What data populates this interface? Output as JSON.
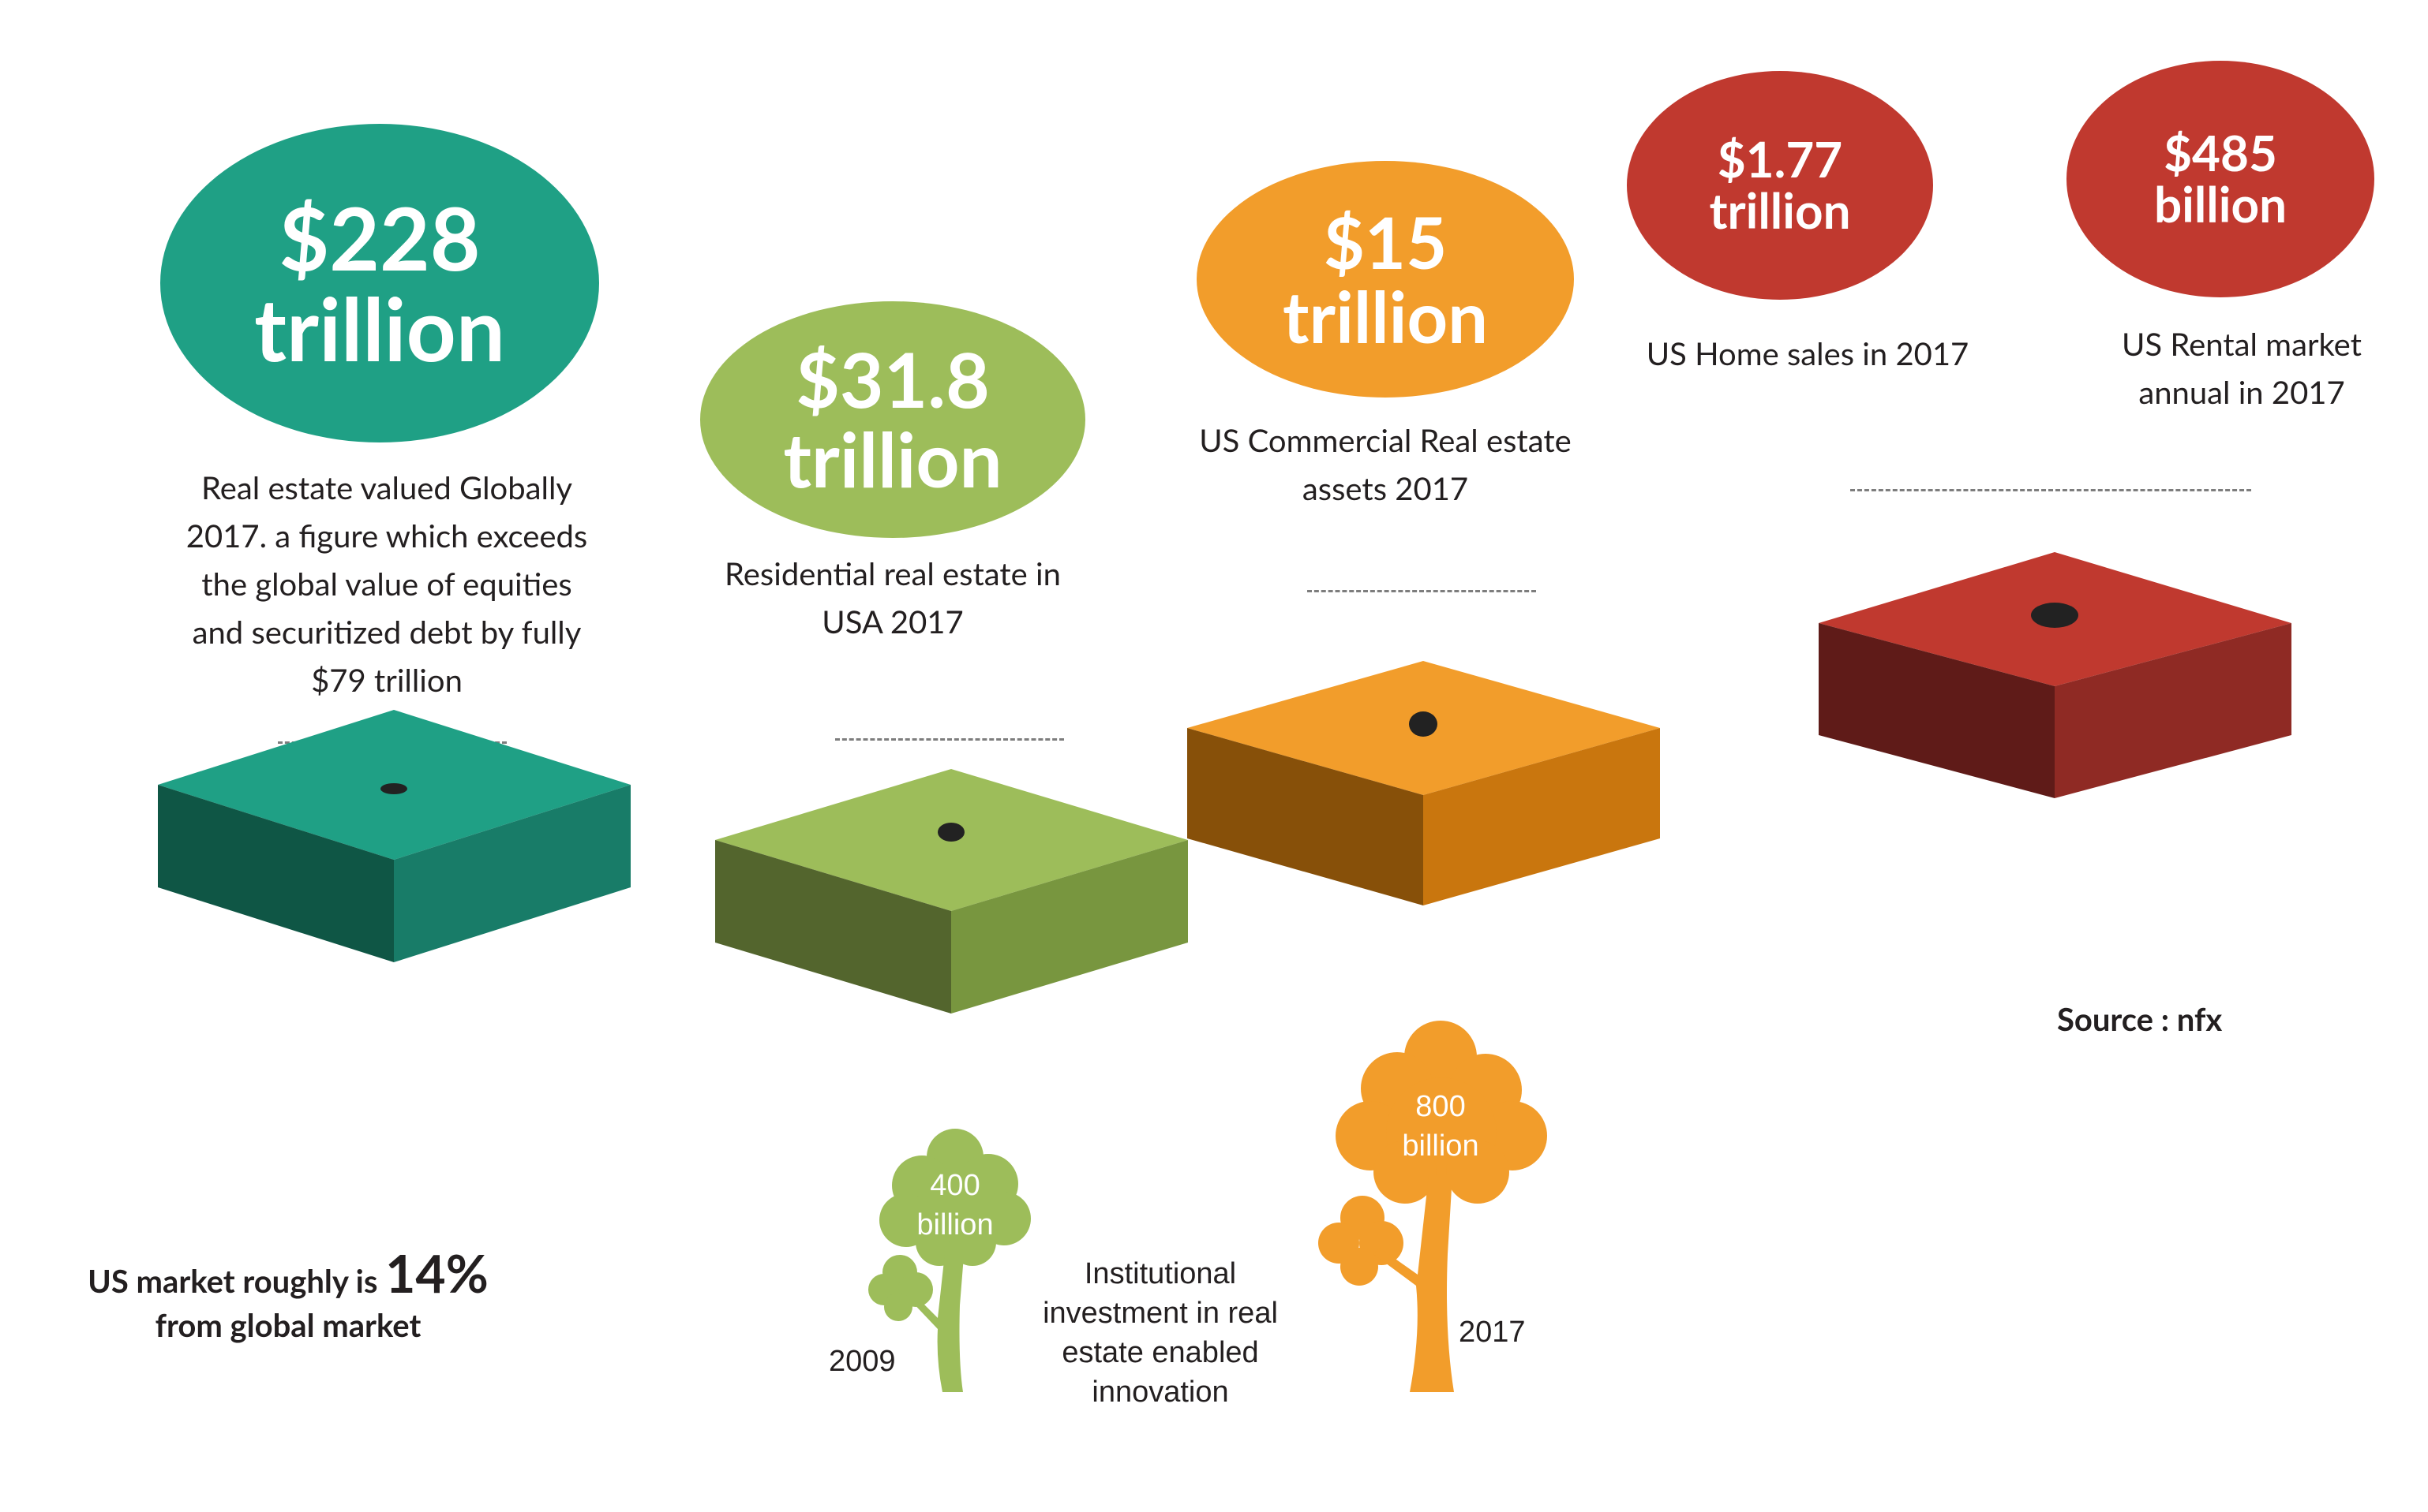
{
  "stats": [
    {
      "value_line1": "$228",
      "value_line2": "trillion",
      "caption": [
        "Real estate valued Globally",
        "2017. a figure which exceeds",
        "the global value of equities",
        "and securitized debt by fully",
        "$79 trillion"
      ],
      "color": "#1fa085"
    },
    {
      "value_line1": "$31.8",
      "value_line2": "trillion",
      "caption": [
        "Residential real estate in",
        "USA 2017"
      ],
      "color": "#9dbd5a"
    },
    {
      "value_line1": "$15",
      "value_line2": "trillion",
      "caption": [
        "US Commercial Real estate",
        "assets 2017"
      ],
      "color": "#f29d2b"
    },
    {
      "value_line1": "$1.77",
      "value_line2": "trillion",
      "caption": [
        "US Home sales in 2017"
      ],
      "color": "#c0392f"
    },
    {
      "value_line1": "$485",
      "value_line2": "billion",
      "caption": [
        "US Rental market",
        "annual in 2017"
      ],
      "color": "#c0392f"
    }
  ],
  "trees": [
    {
      "line1": "400",
      "line2": "billion",
      "year": "2009",
      "color": "#9dbd5a"
    },
    {
      "line1": "800",
      "line2": "billion",
      "year": "2017",
      "color": "#f29d2b"
    }
  ],
  "institutional": [
    "Institutional",
    "investment in real",
    "estate enabled",
    "innovation"
  ],
  "source": "Source : nfx",
  "market_share": {
    "prefix": "US market roughly is",
    "value": "14%",
    "suffix": "from global market"
  },
  "colors": {
    "teal": "#1fa085",
    "green": "#9dbd5a",
    "orange": "#f29d2b",
    "red": "#c0392f",
    "text": "#231f20"
  }
}
